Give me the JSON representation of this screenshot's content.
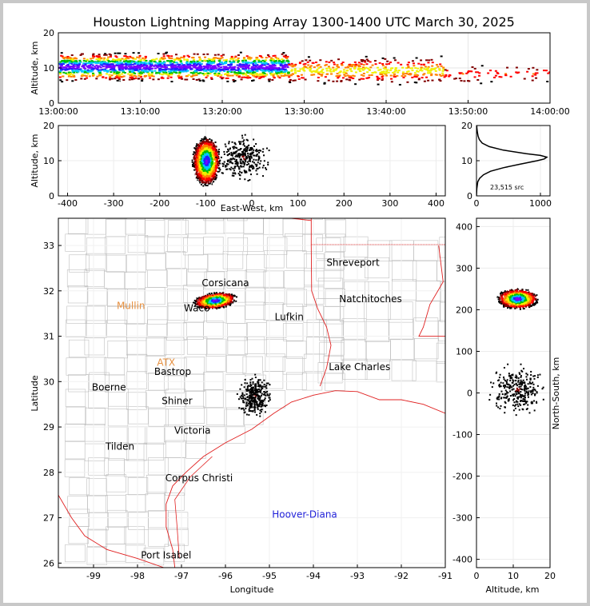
{
  "title": "Houston Lightning Mapping Array 1300-1400 UTC March 30, 2025",
  "chart_data": [
    {
      "panel": "altitude-vs-time",
      "type": "scatter",
      "ylabel": "Altitude, km",
      "xlabel": "",
      "x_ticks": [
        "13:00:00",
        "13:10:00",
        "13:20:00",
        "13:30:00",
        "13:40:00",
        "13:50:00",
        "14:00:00"
      ],
      "xlim_minutes": [
        0,
        60
      ],
      "y_ticks": [
        0,
        10,
        20
      ],
      "ylim": [
        0,
        20
      ],
      "activity": [
        {
          "minute_start": 0,
          "minute_end": 28,
          "alt_center_km": 10.5,
          "alt_spread_km": 3.5,
          "density": "high"
        },
        {
          "minute_start": 28,
          "minute_end": 47,
          "alt_center_km": 9.5,
          "alt_spread_km": 3.5,
          "density": "medium"
        },
        {
          "minute_start": 47,
          "minute_end": 60,
          "alt_center_km": 8.5,
          "alt_spread_km": 2.5,
          "density": "sparse"
        }
      ]
    },
    {
      "panel": "altitude-vs-east-west",
      "type": "scatter",
      "xlabel": "East-West, km",
      "ylabel": "Altitude, km",
      "x_ticks": [
        -400,
        -300,
        -200,
        -100,
        0,
        100,
        200,
        300,
        400
      ],
      "xlim": [
        -420,
        420
      ],
      "y_ticks": [
        0,
        10,
        20
      ],
      "ylim": [
        0,
        20
      ],
      "clusters": [
        {
          "x_center_km": -100,
          "x_spread_km": 20,
          "alt_center_km": 10,
          "alt_spread_km": 5,
          "density": "high"
        },
        {
          "x_center_km": -20,
          "x_spread_km": 40,
          "alt_center_km": 11,
          "alt_spread_km": 5,
          "density": "sparse"
        }
      ]
    },
    {
      "panel": "altitude-histogram",
      "type": "line",
      "x_ticks": [
        0,
        1000
      ],
      "xlim": [
        0,
        1150
      ],
      "y_ticks": [
        0,
        10,
        20
      ],
      "ylim": [
        0,
        20
      ],
      "annotation": "23,515 src",
      "altitude_km": [
        0,
        2,
        4,
        5,
        6,
        7,
        8,
        9,
        10,
        10.5,
        11,
        11.5,
        12,
        13,
        14,
        15,
        16,
        17,
        18,
        19,
        20
      ],
      "count": [
        0,
        5,
        20,
        50,
        110,
        220,
        420,
        680,
        950,
        1060,
        1100,
        1000,
        780,
        420,
        200,
        90,
        45,
        25,
        15,
        8,
        4
      ]
    },
    {
      "panel": "plan-view-map",
      "type": "scatter",
      "xlabel": "Longitude",
      "ylabel": "Latitude",
      "x_ticks": [
        -99,
        -98,
        -97,
        -96,
        -95,
        -94,
        -93,
        -92,
        -91
      ],
      "xlim": [
        -99.8,
        -91.0
      ],
      "y_ticks": [
        26,
        27,
        28,
        29,
        30,
        31,
        32,
        33
      ],
      "ylim": [
        25.9,
        33.6
      ],
      "clusters": [
        {
          "lon": -96.25,
          "lat": 31.8,
          "lon_spread": 0.35,
          "lat_spread": 0.13,
          "density": "high"
        },
        {
          "lon": -95.35,
          "lat": 29.7,
          "lon_spread": 0.3,
          "lat_spread": 0.35,
          "density": "sparse"
        }
      ],
      "cities": [
        {
          "name": "Corsicana",
          "lon": -96.0,
          "lat": 32.1
        },
        {
          "name": "Shreveport",
          "lon": -93.1,
          "lat": 32.55
        },
        {
          "name": "Waco",
          "lon": -96.65,
          "lat": 31.55
        },
        {
          "name": "Natchitoches",
          "lon": -92.7,
          "lat": 31.75
        },
        {
          "name": "Lufkin",
          "lon": -94.55,
          "lat": 31.35
        },
        {
          "name": "Bastrop",
          "lon": -97.2,
          "lat": 30.15
        },
        {
          "name": "Lake Charles",
          "lon": -92.95,
          "lat": 30.25
        },
        {
          "name": "Boerne",
          "lon": -98.65,
          "lat": 29.8
        },
        {
          "name": "Shiner",
          "lon": -97.1,
          "lat": 29.5
        },
        {
          "name": "Victoria",
          "lon": -96.75,
          "lat": 28.85
        },
        {
          "name": "Tilden",
          "lon": -98.4,
          "lat": 28.5
        },
        {
          "name": "Corpus Christi",
          "lon": -96.6,
          "lat": 27.8
        },
        {
          "name": "Port Isabel",
          "lon": -97.35,
          "lat": 26.1
        }
      ],
      "colored_labels": [
        {
          "name": "Mullin",
          "lon": -98.15,
          "lat": 31.6,
          "color": "#e69040"
        },
        {
          "name": "ATX",
          "lon": -97.35,
          "lat": 30.35,
          "color": "#e69040"
        },
        {
          "name": "Hoover-Diana",
          "lon": -94.2,
          "lat": 27.0,
          "color": "#1f1fd8"
        }
      ]
    },
    {
      "panel": "north-south-vs-altitude",
      "type": "scatter",
      "xlabel": "Altitude, km",
      "ylabel": "North-South, km",
      "x_ticks": [
        0,
        10,
        20
      ],
      "xlim": [
        0,
        20
      ],
      "y_ticks": [
        -400,
        -300,
        -200,
        -100,
        0,
        100,
        200,
        300,
        400
      ],
      "ylim": [
        -420,
        420
      ],
      "clusters": [
        {
          "ns_center_km": 228,
          "ns_spread_km": 18,
          "alt_center_km": 11,
          "alt_spread_km": 4,
          "density": "high"
        },
        {
          "ns_center_km": 10,
          "ns_spread_km": 45,
          "alt_center_km": 11,
          "alt_spread_km": 6,
          "density": "sparse"
        }
      ]
    }
  ],
  "colors": {
    "density_scale": [
      "#7a00ff",
      "#2020ff",
      "#00c8ff",
      "#00c000",
      "#f0f000",
      "#ff8000",
      "#ff0000",
      "#800000",
      "#000000",
      "#ffffff"
    ],
    "state_border": "#e02020",
    "county_border": "#c0c0c0",
    "histogram_line": "#000000"
  }
}
